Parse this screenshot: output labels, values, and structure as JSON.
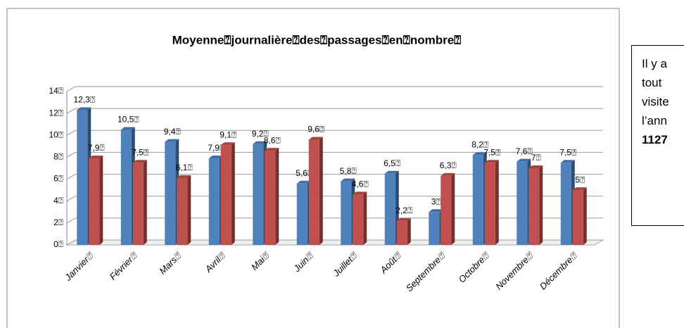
{
  "chart_data": {
    "type": "bar",
    "title": "Moyenne⍰journalière⍰des⍰passages⍰en⍰nombre⍰",
    "categories": [
      "Janvier⍰",
      "Février⍰",
      "Mars⍰",
      "Avril⍰",
      "Mai⍰",
      "Juin⍰",
      "Juillet⍰",
      "Août⍰",
      "Septembre⍰",
      "Octobre⍰",
      "Novembre⍰",
      "Décembre⍰"
    ],
    "series": [
      {
        "color": "#4f81bd",
        "values": [
          12.3,
          10.5,
          9.4,
          7.9,
          9.2,
          5.6,
          5.8,
          6.5,
          3,
          8.2,
          7.6,
          7.5
        ],
        "value_labels": [
          "12,3⍰",
          "10,5⍰",
          "9,4⍰",
          "7,9⍰",
          "9,2⍰",
          "5,6⍰",
          "5,8⍰",
          "6,5⍰",
          "3⍰",
          "8,2⍰",
          "7,6⍰",
          "7,5⍰"
        ]
      },
      {
        "color": "#c0504d",
        "values": [
          7.9,
          7.5,
          6.1,
          9.1,
          8.6,
          9.6,
          4.6,
          2.2,
          6.3,
          7.5,
          7,
          5
        ],
        "value_labels": [
          "7,9⍰",
          "7,5⍰",
          "6,1⍰",
          "9,1⍰",
          "8,6⍰",
          "9,6⍰",
          "4,6⍰",
          "2,2⍰",
          "6,3⍰",
          "7,5⍰",
          "7⍰",
          "5⍰"
        ]
      }
    ],
    "ylim": [
      0,
      14
    ],
    "yticks": [
      {
        "value": 0,
        "label": "0⍰"
      },
      {
        "value": 2,
        "label": "2⍰"
      },
      {
        "value": 4,
        "label": "4⍰"
      },
      {
        "value": 6,
        "label": "6⍰"
      },
      {
        "value": 8,
        "label": "8⍰"
      },
      {
        "value": 10,
        "label": "10⍰"
      },
      {
        "value": 12,
        "label": "12⍰"
      },
      {
        "value": 14,
        "label": "14⍰"
      }
    ],
    "grid": true
  },
  "text_box": {
    "lines": [
      "Il y a",
      "tout",
      "visite",
      "l’ann",
      "1127"
    ]
  }
}
